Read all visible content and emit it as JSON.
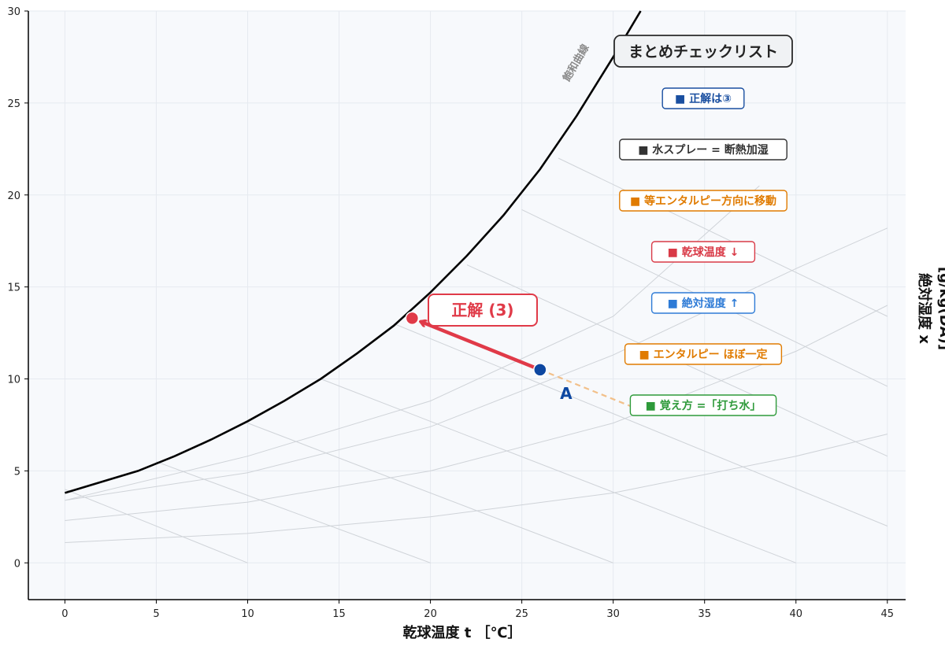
{
  "chart_data": {
    "type": "line",
    "xlabel": "乾球温度 t ［℃］",
    "ylabel": "絶対湿度 x [g/kg(DA)]",
    "xlim": [
      -2,
      46
    ],
    "ylim": [
      -2,
      30
    ],
    "xticks": [
      "0",
      "5",
      "10",
      "15",
      "20",
      "25",
      "30",
      "35",
      "40",
      "45"
    ],
    "yticks": [
      "0",
      "5",
      "10",
      "15",
      "20",
      "25",
      "30"
    ],
    "grid": true,
    "saturation_curve": {
      "label": "飽和曲線",
      "x": [
        0,
        2,
        4,
        6,
        8,
        10,
        12,
        14,
        16,
        18,
        20,
        22,
        24,
        26,
        28,
        30,
        31.5
      ],
      "y": [
        3.8,
        4.4,
        5.0,
        5.8,
        6.7,
        7.7,
        8.8,
        10.0,
        11.4,
        12.9,
        14.7,
        16.7,
        18.9,
        21.4,
        24.3,
        27.5,
        30.0
      ]
    },
    "enthalpy_lines": [
      {
        "x": [
          0,
          10
        ],
        "y": [
          4.0,
          0
        ]
      },
      {
        "x": [
          5,
          20
        ],
        "y": [
          5.5,
          0
        ]
      },
      {
        "x": [
          10,
          30
        ],
        "y": [
          7.6,
          0
        ]
      },
      {
        "x": [
          14,
          40
        ],
        "y": [
          10.0,
          0
        ]
      },
      {
        "x": [
          18,
          45
        ],
        "y": [
          13.0,
          2.0
        ]
      },
      {
        "x": [
          22,
          45
        ],
        "y": [
          16.2,
          5.8
        ]
      },
      {
        "x": [
          25,
          45
        ],
        "y": [
          19.2,
          9.6
        ]
      },
      {
        "x": [
          27,
          45
        ],
        "y": [
          22.0,
          13.4
        ]
      }
    ],
    "humidity_curves": [
      {
        "x": [
          0,
          10,
          20,
          30,
          40,
          45
        ],
        "y": [
          1.1,
          1.6,
          2.5,
          3.8,
          5.8,
          7.0
        ]
      },
      {
        "x": [
          0,
          10,
          20,
          30,
          40,
          45
        ],
        "y": [
          2.3,
          3.3,
          5.0,
          7.6,
          11.5,
          14.0
        ]
      },
      {
        "x": [
          0,
          10,
          20,
          30,
          40,
          45
        ],
        "y": [
          3.4,
          4.9,
          7.4,
          11.3,
          16.0,
          18.2
        ]
      },
      {
        "x": [
          0,
          10,
          20,
          30,
          38
        ],
        "y": [
          3.4,
          5.8,
          8.8,
          13.4,
          20.5
        ]
      }
    ],
    "point_a": {
      "label": "A",
      "x": 26,
      "y": 10.5
    },
    "answer_point": {
      "x": 19,
      "y": 13.3
    },
    "answer_label": "正解 (3)",
    "guide_line": {
      "x": [
        26,
        31
      ],
      "y": [
        10.5,
        8.5
      ]
    }
  },
  "checklist": {
    "title": "まとめチェックリスト",
    "items": [
      {
        "text": "■ 正解は③",
        "color": "#1a4fa0"
      },
      {
        "text": "■ 水スプレー = 断熱加湿",
        "color": "#333333"
      },
      {
        "text": "■ 等エンタルピー方向に移動",
        "color": "#e07b00"
      },
      {
        "text": "■ 乾球温度 ↓",
        "color": "#d93a47"
      },
      {
        "text": "■ 絶対湿度 ↑",
        "color": "#2e7bd6"
      },
      {
        "text": "■ エンタルピー ほぼ一定",
        "color": "#e07b00"
      },
      {
        "text": "■ 覚え方 =「打ち水」",
        "color": "#2e9a3a"
      }
    ]
  },
  "colors": {
    "plot_bg": "#f7f9fc",
    "saturation": "#000000",
    "point_a": "#0d47a1",
    "answer": "#e03a48",
    "guide": "#f2c08a",
    "grid": "#e6eaf0",
    "thin_line": "#cfd3d8"
  }
}
